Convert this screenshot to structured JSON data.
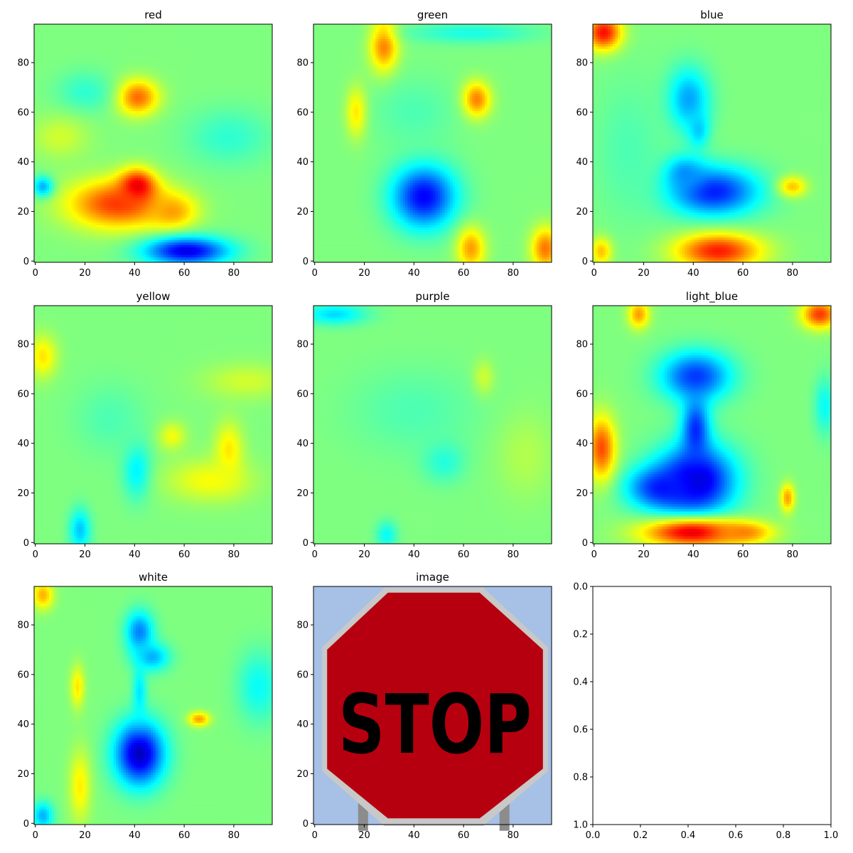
{
  "chart_data": [
    {
      "type": "heatmap",
      "title": "red",
      "colormap": "jet",
      "xticks": [
        0,
        20,
        40,
        60,
        80
      ],
      "yticks": [
        0,
        20,
        40,
        60,
        80
      ],
      "xlim": [
        -0.5,
        95.5
      ],
      "ylim": [
        95.5,
        -0.5
      ],
      "blobs": [
        {
          "x": 41,
          "y": 29,
          "rx": 6,
          "ry": 5,
          "v": 0.78
        },
        {
          "x": 41,
          "y": 66,
          "rx": 5,
          "ry": 5,
          "v": 1.0
        },
        {
          "x": 33,
          "y": 72,
          "rx": 14,
          "ry": 7,
          "v": 0.82
        },
        {
          "x": 55,
          "y": 75,
          "rx": 7,
          "ry": 5,
          "v": 0.72
        },
        {
          "x": 61,
          "y": 91,
          "rx": 12,
          "ry": 4,
          "v": 0.1
        },
        {
          "x": 3,
          "y": 65,
          "rx": 3,
          "ry": 3,
          "v": 0.3
        },
        {
          "x": 20,
          "y": 27,
          "rx": 8,
          "ry": 6,
          "v": 0.42
        },
        {
          "x": 78,
          "y": 45,
          "rx": 12,
          "ry": 8,
          "v": 0.42
        },
        {
          "x": 10,
          "y": 45,
          "rx": 8,
          "ry": 6,
          "v": 0.58
        }
      ]
    },
    {
      "type": "heatmap",
      "title": "green",
      "colormap": "jet",
      "xticks": [
        0,
        20,
        40,
        60,
        80
      ],
      "yticks": [
        0,
        20,
        40,
        60,
        80
      ],
      "xlim": [
        -0.5,
        95.5
      ],
      "ylim": [
        95.5,
        -0.5
      ],
      "blobs": [
        {
          "x": 28,
          "y": 8,
          "rx": 4,
          "ry": 8,
          "v": 0.76
        },
        {
          "x": 65,
          "y": 30,
          "rx": 4,
          "ry": 5,
          "v": 0.78
        },
        {
          "x": 17,
          "y": 35,
          "rx": 3,
          "ry": 7,
          "v": 0.68
        },
        {
          "x": 44,
          "y": 69,
          "rx": 9,
          "ry": 9,
          "v": 0.12
        },
        {
          "x": 63,
          "y": 90,
          "rx": 4,
          "ry": 6,
          "v": 0.72
        },
        {
          "x": 93,
          "y": 90,
          "rx": 4,
          "ry": 6,
          "v": 0.76
        },
        {
          "x": 63,
          "y": 3,
          "rx": 18,
          "ry": 3,
          "v": 0.4
        },
        {
          "x": 40,
          "y": 35,
          "rx": 12,
          "ry": 10,
          "v": 0.45
        }
      ]
    },
    {
      "type": "heatmap",
      "title": "blue",
      "colormap": "jet",
      "xticks": [
        0,
        20,
        40,
        60,
        80
      ],
      "yticks": [
        0,
        20,
        40,
        60,
        80
      ],
      "xlim": [
        -0.5,
        95.5
      ],
      "ylim": [
        95.5,
        -0.5
      ],
      "blobs": [
        {
          "x": 4,
          "y": 3,
          "rx": 5,
          "ry": 5,
          "v": 0.88
        },
        {
          "x": 38,
          "y": 30,
          "rx": 6,
          "ry": 9,
          "v": 0.28
        },
        {
          "x": 42,
          "y": 42,
          "rx": 3,
          "ry": 5,
          "v": 0.32
        },
        {
          "x": 48,
          "y": 67,
          "rx": 13,
          "ry": 7,
          "v": 0.15
        },
        {
          "x": 36,
          "y": 60,
          "rx": 6,
          "ry": 5,
          "v": 0.25
        },
        {
          "x": 50,
          "y": 91,
          "rx": 12,
          "ry": 5,
          "v": 0.85
        },
        {
          "x": 3,
          "y": 91,
          "rx": 3,
          "ry": 4,
          "v": 0.7
        },
        {
          "x": 80,
          "y": 65,
          "rx": 4,
          "ry": 3,
          "v": 0.68
        },
        {
          "x": 14,
          "y": 50,
          "rx": 10,
          "ry": 20,
          "v": 0.45
        }
      ]
    },
    {
      "type": "heatmap",
      "title": "yellow",
      "colormap": "jet",
      "xticks": [
        0,
        20,
        40,
        60,
        80
      ],
      "yticks": [
        0,
        20,
        40,
        60,
        80
      ],
      "xlim": [
        -0.5,
        95.5
      ],
      "ylim": [
        95.5,
        -0.5
      ],
      "blobs": [
        {
          "x": 41,
          "y": 66,
          "rx": 4,
          "ry": 8,
          "v": 0.35
        },
        {
          "x": 18,
          "y": 90,
          "rx": 3,
          "ry": 6,
          "v": 0.32
        },
        {
          "x": 3,
          "y": 20,
          "rx": 4,
          "ry": 6,
          "v": 0.65
        },
        {
          "x": 78,
          "y": 58,
          "rx": 4,
          "ry": 8,
          "v": 0.65
        },
        {
          "x": 55,
          "y": 52,
          "rx": 4,
          "ry": 4,
          "v": 0.62
        },
        {
          "x": 70,
          "y": 70,
          "rx": 12,
          "ry": 6,
          "v": 0.62
        },
        {
          "x": 85,
          "y": 30,
          "rx": 12,
          "ry": 5,
          "v": 0.58
        },
        {
          "x": 30,
          "y": 45,
          "rx": 10,
          "ry": 10,
          "v": 0.45
        }
      ]
    },
    {
      "type": "heatmap",
      "title": "purple",
      "colormap": "jet",
      "xticks": [
        0,
        20,
        40,
        60,
        80
      ],
      "yticks": [
        0,
        20,
        40,
        60,
        80
      ],
      "xlim": [
        -0.5,
        95.5
      ],
      "ylim": [
        95.5,
        -0.5
      ],
      "blobs": [
        {
          "x": 8,
          "y": 3,
          "rx": 9,
          "ry": 3,
          "v": 0.34
        },
        {
          "x": 68,
          "y": 29,
          "rx": 3,
          "ry": 5,
          "v": 0.6
        },
        {
          "x": 52,
          "y": 62,
          "rx": 6,
          "ry": 6,
          "v": 0.4
        },
        {
          "x": 29,
          "y": 92,
          "rx": 3,
          "ry": 4,
          "v": 0.38
        },
        {
          "x": 40,
          "y": 42,
          "rx": 18,
          "ry": 12,
          "v": 0.45
        },
        {
          "x": 85,
          "y": 60,
          "rx": 8,
          "ry": 12,
          "v": 0.55
        }
      ]
    },
    {
      "type": "heatmap",
      "title": "light_blue",
      "colormap": "jet",
      "xticks": [
        0,
        20,
        40,
        60,
        80
      ],
      "yticks": [
        0,
        20,
        40,
        60,
        80
      ],
      "xlim": [
        -0.5,
        95.5
      ],
      "ylim": [
        95.5,
        -0.5
      ],
      "blobs": [
        {
          "x": 41,
          "y": 70,
          "rx": 11,
          "ry": 10,
          "v": 0.06
        },
        {
          "x": 28,
          "y": 73,
          "rx": 10,
          "ry": 6,
          "v": 0.14
        },
        {
          "x": 41,
          "y": 50,
          "rx": 4,
          "ry": 10,
          "v": 0.16
        },
        {
          "x": 41,
          "y": 28,
          "rx": 10,
          "ry": 7,
          "v": 0.18
        },
        {
          "x": 40,
          "y": 91,
          "rx": 14,
          "ry": 4,
          "v": 0.9
        },
        {
          "x": 60,
          "y": 91,
          "rx": 8,
          "ry": 3,
          "v": 0.75
        },
        {
          "x": 3,
          "y": 57,
          "rx": 4,
          "ry": 9,
          "v": 0.8
        },
        {
          "x": 91,
          "y": 3,
          "rx": 5,
          "ry": 4,
          "v": 0.82
        },
        {
          "x": 18,
          "y": 3,
          "rx": 3,
          "ry": 4,
          "v": 0.72
        },
        {
          "x": 78,
          "y": 77,
          "rx": 2,
          "ry": 4,
          "v": 0.72
        },
        {
          "x": 93,
          "y": 40,
          "rx": 3,
          "ry": 8,
          "v": 0.38
        }
      ]
    },
    {
      "type": "heatmap",
      "title": "white",
      "colormap": "jet",
      "xticks": [
        0,
        20,
        40,
        60,
        80
      ],
      "yticks": [
        0,
        20,
        40,
        60,
        80
      ],
      "xlim": [
        -0.5,
        95.5
      ],
      "ylim": [
        95.5,
        -0.5
      ],
      "blobs": [
        {
          "x": 42,
          "y": 67,
          "rx": 7,
          "ry": 9,
          "v": 0.06
        },
        {
          "x": 42,
          "y": 18,
          "rx": 4,
          "ry": 6,
          "v": 0.25
        },
        {
          "x": 47,
          "y": 28,
          "rx": 5,
          "ry": 4,
          "v": 0.3
        },
        {
          "x": 42,
          "y": 42,
          "rx": 2,
          "ry": 8,
          "v": 0.35
        },
        {
          "x": 3,
          "y": 3,
          "rx": 3,
          "ry": 4,
          "v": 0.7
        },
        {
          "x": 3,
          "y": 92,
          "rx": 3,
          "ry": 4,
          "v": 0.3
        },
        {
          "x": 17,
          "y": 40,
          "rx": 2,
          "ry": 6,
          "v": 0.65
        },
        {
          "x": 66,
          "y": 53,
          "rx": 3,
          "ry": 2,
          "v": 0.72
        },
        {
          "x": 90,
          "y": 40,
          "rx": 6,
          "ry": 10,
          "v": 0.38
        },
        {
          "x": 18,
          "y": 80,
          "rx": 3,
          "ry": 10,
          "v": 0.64
        }
      ]
    },
    {
      "type": "image",
      "title": "image",
      "xticks": [
        0,
        20,
        40,
        60,
        80
      ],
      "yticks": [
        0,
        20,
        40,
        60,
        80
      ],
      "xlim": [
        -0.5,
        95.5
      ],
      "ylim": [
        95.5,
        -0.5
      ],
      "sign_text": "STOP",
      "colors": {
        "sky": "#a6c0e6",
        "sign": "#b7000f",
        "border": "#c8c8c8",
        "post": "#8c8c8c"
      }
    },
    {
      "type": "scatter",
      "title": "",
      "xticks": [
        0.0,
        0.2,
        0.4,
        0.6,
        0.8,
        1.0
      ],
      "yticks": [
        0.0,
        0.2,
        0.4,
        0.6,
        0.8,
        1.0
      ],
      "xlim": [
        0,
        1
      ],
      "ylim": [
        0,
        1
      ]
    }
  ]
}
